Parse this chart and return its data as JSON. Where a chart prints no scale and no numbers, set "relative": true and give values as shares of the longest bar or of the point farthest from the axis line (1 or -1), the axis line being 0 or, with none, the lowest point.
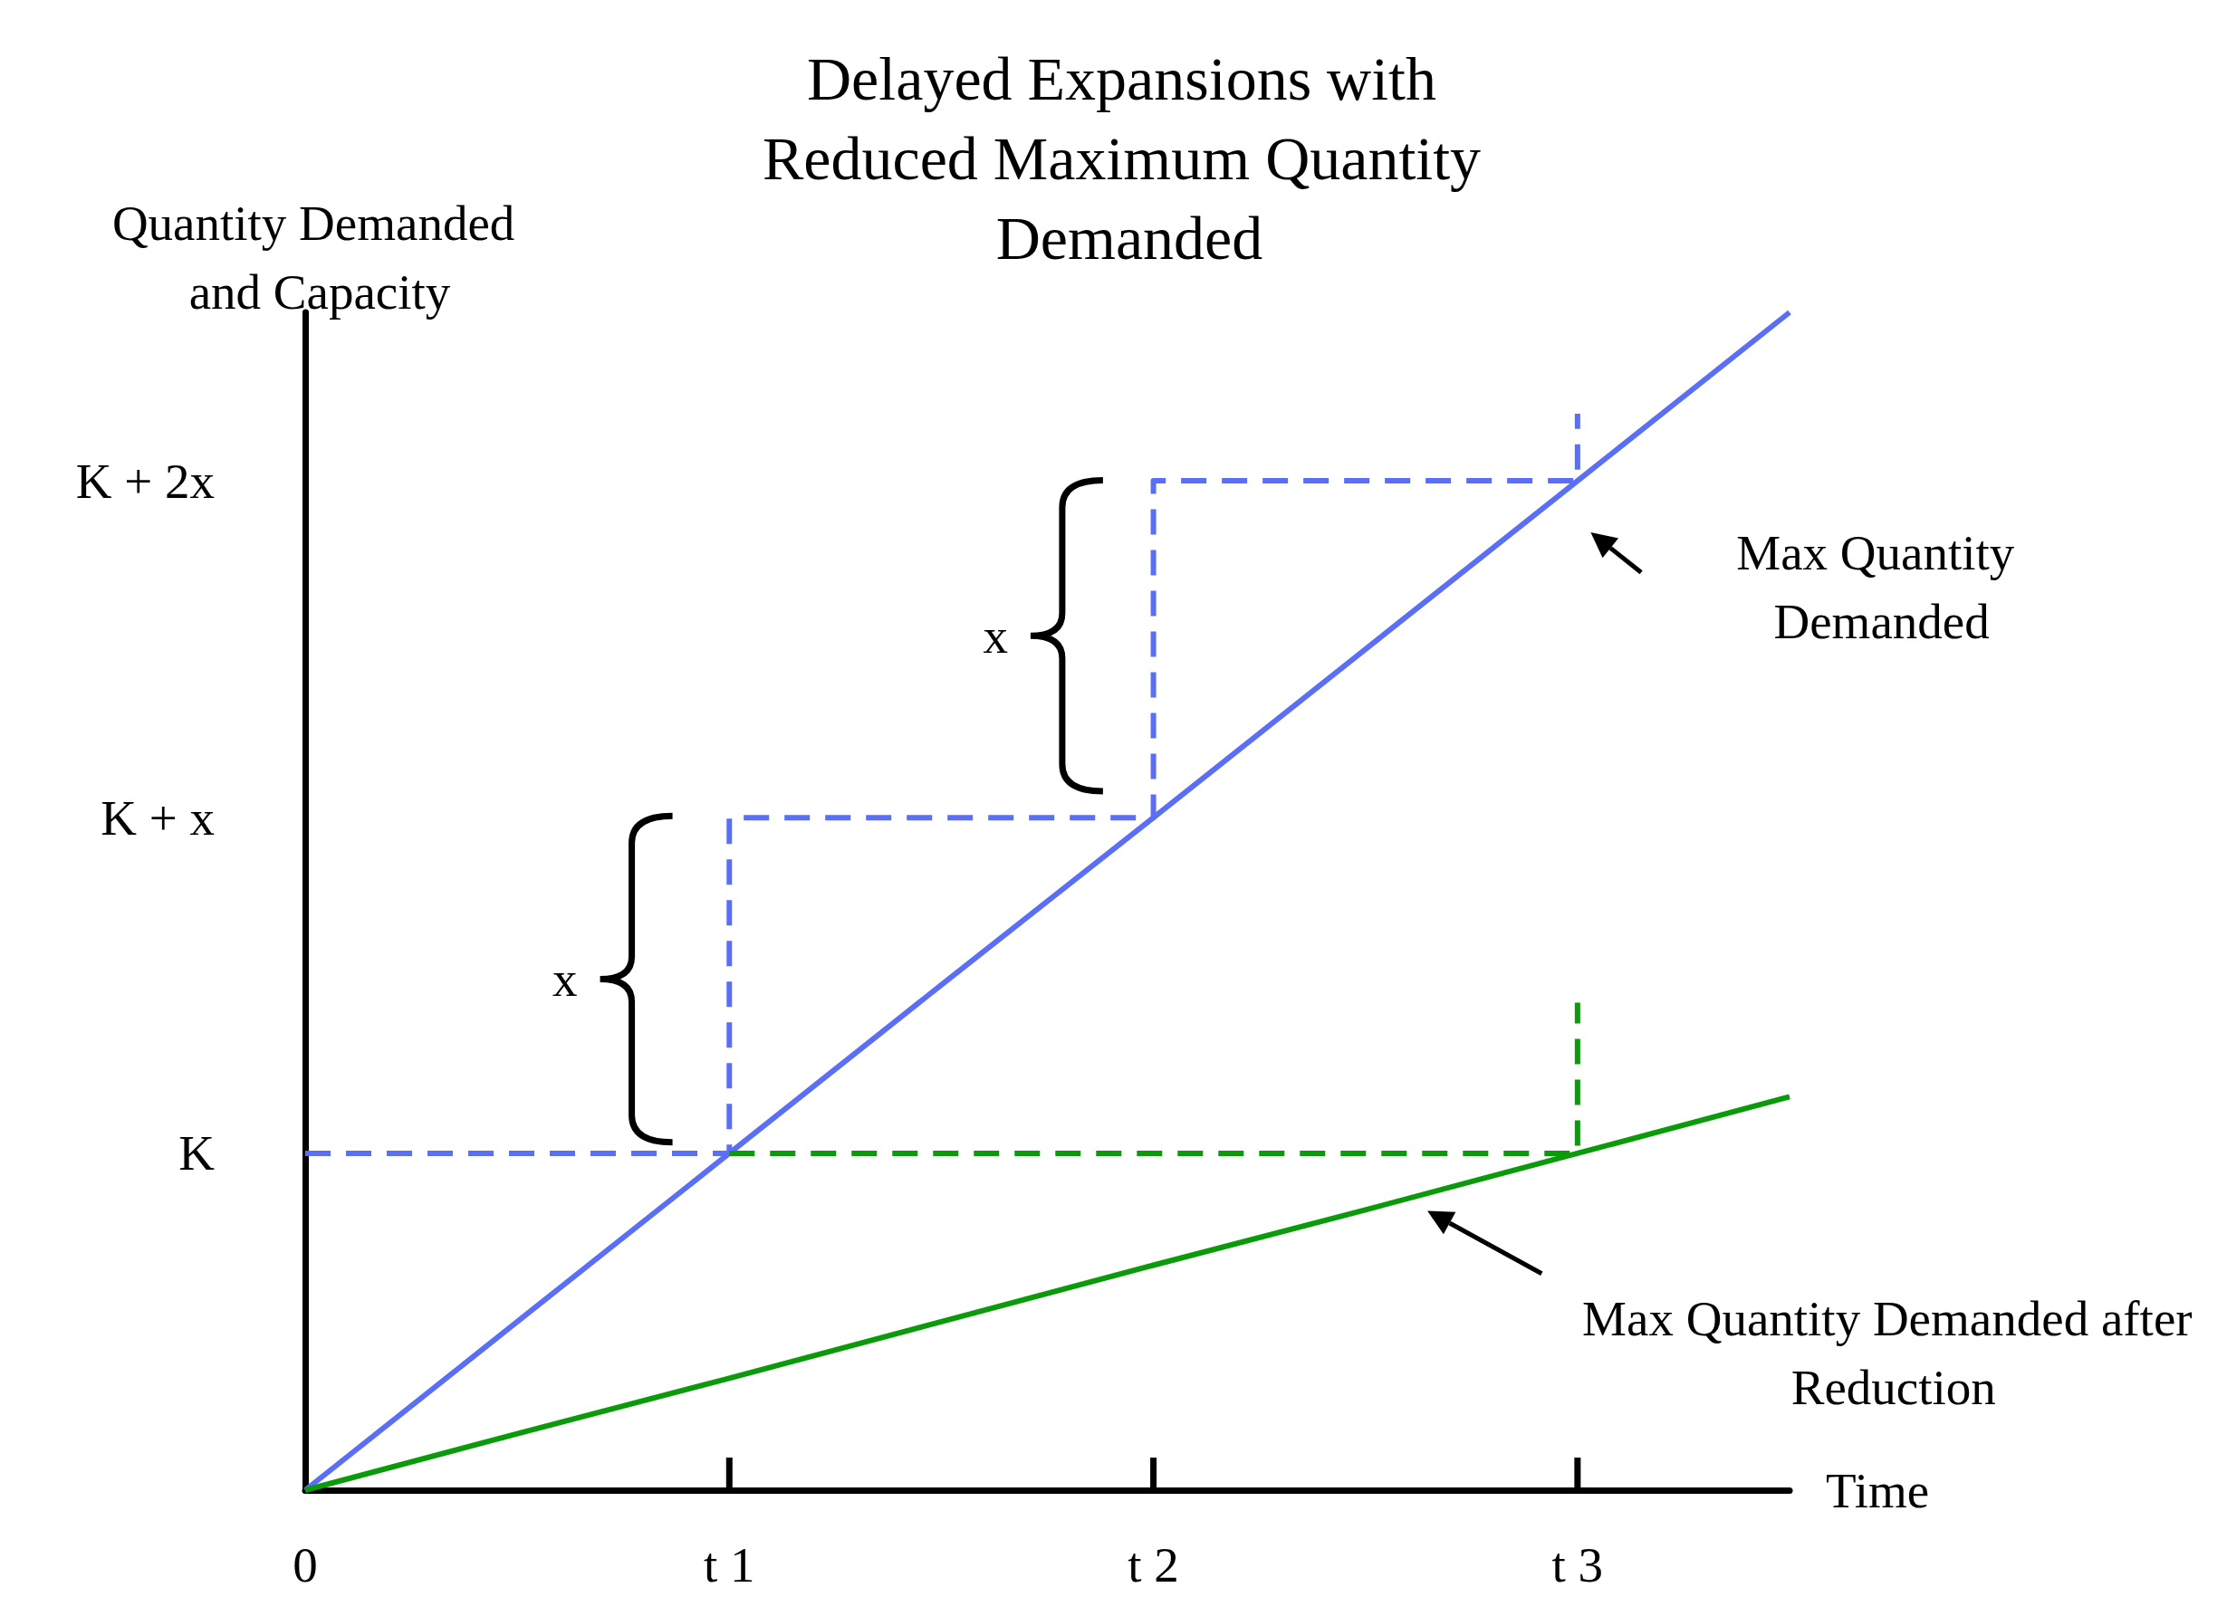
{
  "chart_data": {
    "type": "line",
    "title": "Delayed Expansions with Reduced Maximum Quantity Demanded",
    "xlabel": "Time",
    "ylabel": "Quantity Demanded and Capacity",
    "relative": true,
    "categories": [
      "0",
      null,
      "t 1",
      null,
      "t 2",
      null,
      "t 3",
      null
    ],
    "grid": false,
    "marker": "none",
    "series": [
      {
        "color": "#5a6ff5",
        "values": [
          0,
          0.143,
          0.286,
          0.429,
          0.571,
          0.714,
          0.857,
          1
        ],
        "line_style": "solid"
      },
      {
        "color": "#0a9a0a",
        "values": [
          0,
          0.048,
          0.095,
          0.143,
          0.191,
          0.238,
          0.286,
          0.334
        ],
        "line_style": "solid"
      },
      {
        "color": "#5a6ff5",
        "x": [
          "0",
          "t 1",
          "t 1",
          "t 2",
          "t 2",
          "t 3",
          "t 3"
        ],
        "values": [
          0.286,
          0.286,
          0.571,
          0.571,
          0.857,
          0.857,
          0.914
        ],
        "line_style": "dashed"
      },
      {
        "color": "#0a9a0a",
        "x": [
          "t 1",
          "t 3",
          "t 3"
        ],
        "values": [
          0.286,
          0.286,
          0.414
        ],
        "line_style": "dashed"
      }
    ],
    "annotations": [
      "K",
      "K + x",
      "K + 2x",
      "x",
      "x",
      "Max Quantity Demanded",
      "Max Quantity Demanded after Reduction"
    ]
  }
}
